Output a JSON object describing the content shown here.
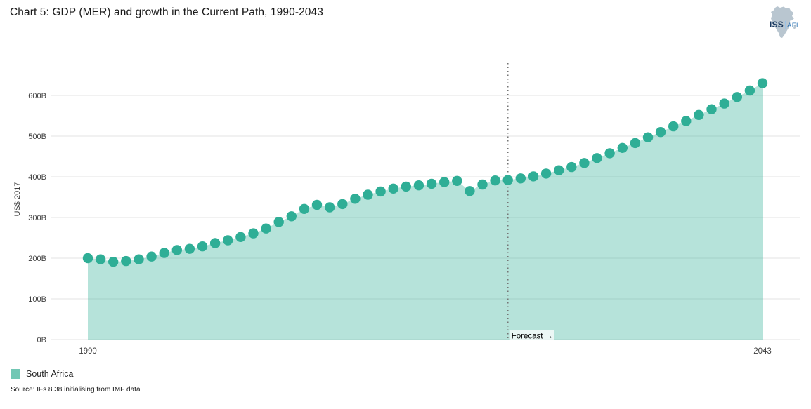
{
  "header": {
    "title": "Chart 5: GDP (MER) and growth in the Current Path, 1990-2043"
  },
  "logo": {
    "iss": "ISS",
    "afi": "AFI"
  },
  "chart_data": {
    "type": "area",
    "title": "Chart 5: GDP (MER) and growth in the Current Path, 1990-2043",
    "ylabel": "US$ 2017",
    "ylim": [
      0,
      660
    ],
    "yticks": [
      0,
      100,
      200,
      300,
      400,
      500,
      600
    ],
    "ytick_suffix": "B",
    "grid": true,
    "x_start": 1990,
    "x_end": 2043,
    "xtick_labels": [
      "1990",
      "2043"
    ],
    "forecast_year": 2023,
    "forecast_label": "Forecast →",
    "legend_position": "bottom-left",
    "series": [
      {
        "name": "South Africa",
        "dot_color": "#2fae96",
        "area_color": "#2fae96",
        "area_opacity": 0.35,
        "years": [
          1990,
          1991,
          1992,
          1993,
          1994,
          1995,
          1996,
          1997,
          1998,
          1999,
          2000,
          2001,
          2002,
          2003,
          2004,
          2005,
          2006,
          2007,
          2008,
          2009,
          2010,
          2011,
          2012,
          2013,
          2014,
          2015,
          2016,
          2017,
          2018,
          2019,
          2020,
          2021,
          2022,
          2023,
          2024,
          2025,
          2026,
          2027,
          2028,
          2029,
          2030,
          2031,
          2032,
          2033,
          2034,
          2035,
          2036,
          2037,
          2038,
          2039,
          2040,
          2041,
          2042,
          2043
        ],
        "values": [
          200,
          197,
          191,
          193,
          197,
          204,
          213,
          220,
          223,
          229,
          237,
          244,
          252,
          261,
          273,
          289,
          303,
          321,
          331,
          325,
          333,
          346,
          356,
          364,
          371,
          376,
          379,
          383,
          387,
          390,
          365,
          381,
          391,
          392,
          396,
          401,
          408,
          416,
          424,
          434,
          446,
          458,
          471,
          483,
          497,
          510,
          524,
          537,
          552,
          566,
          580,
          596,
          612,
          630
        ]
      }
    ],
    "colors": {
      "gridline": "#e3e3e3",
      "axis_text": "#3f3f3f",
      "forecast_line": "#757575",
      "forecast_label_bg": "rgba(255,255,255,0.72)"
    }
  },
  "legend": {
    "items": [
      {
        "label": "South Africa",
        "color": "#72c7b4"
      }
    ]
  },
  "source": "Source: IFs 8.38 initialising from IMF data"
}
